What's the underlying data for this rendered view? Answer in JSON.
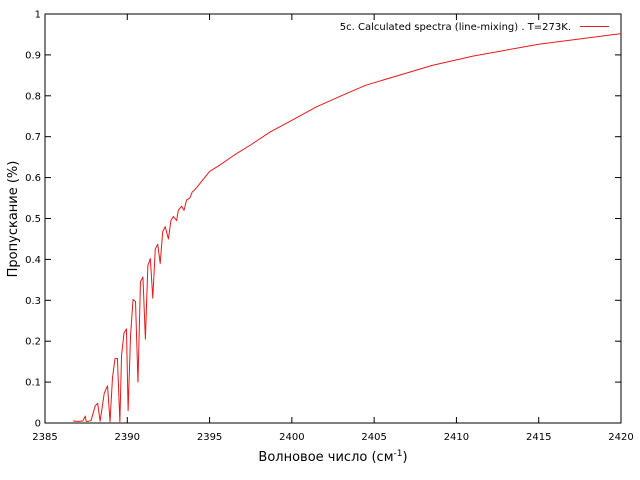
{
  "chart_data": {
    "type": "line",
    "xlabel": "Волновое число (см",
    "xlabel_superscript": "-1",
    "xlabel_suffix": ")",
    "ylabel": "Пропускание (%)",
    "xlim": [
      2385,
      2420
    ],
    "ylim": [
      0,
      1
    ],
    "x_ticks": [
      "2385",
      "2390",
      "2395",
      "2400",
      "2405",
      "2410",
      "2415",
      "2420"
    ],
    "y_ticks": [
      "0",
      "0.1",
      "0.2",
      "0.3",
      "0.4",
      "0.5",
      "0.6",
      "0.7",
      "0.8",
      "0.9",
      "1"
    ],
    "grid": false,
    "legend_position": "top-right",
    "series": [
      {
        "name": "5c. Calculated spectra (line-mixing) . T=273K.",
        "color": "#e41a1c",
        "x": [
          2386.7,
          2387.0,
          2387.3,
          2387.45,
          2387.5,
          2387.6,
          2387.8,
          2388.05,
          2388.2,
          2388.35,
          2388.6,
          2388.8,
          2388.95,
          2389.1,
          2389.25,
          2389.4,
          2389.55,
          2389.65,
          2389.8,
          2389.95,
          2390.05,
          2390.2,
          2390.35,
          2390.5,
          2390.65,
          2390.8,
          2390.95,
          2391.1,
          2391.25,
          2391.4,
          2391.55,
          2391.7,
          2391.85,
          2392.0,
          2392.15,
          2392.3,
          2392.5,
          2392.65,
          2392.8,
          2393.0,
          2393.1,
          2393.3,
          2393.45,
          2393.6,
          2393.8,
          2393.95,
          2394.1,
          2394.3,
          2394.6,
          2395.0,
          2395.6,
          2396.5,
          2397.5,
          2398.7,
          2400.0,
          2401.5,
          2403.0,
          2404.5,
          2406.5,
          2408.5,
          2411.0,
          2415.0,
          2420.0
        ],
        "values": [
          0.005,
          0.004,
          0.005,
          0.017,
          0.004,
          0.004,
          0.006,
          0.042,
          0.048,
          0.004,
          0.073,
          0.091,
          0.003,
          0.11,
          0.157,
          0.158,
          0.003,
          0.165,
          0.22,
          0.23,
          0.03,
          0.215,
          0.302,
          0.297,
          0.1,
          0.345,
          0.357,
          0.205,
          0.385,
          0.402,
          0.305,
          0.425,
          0.437,
          0.39,
          0.467,
          0.48,
          0.45,
          0.495,
          0.505,
          0.495,
          0.52,
          0.53,
          0.52,
          0.545,
          0.55,
          0.565,
          0.57,
          0.58,
          0.595,
          0.615,
          0.63,
          0.655,
          0.68,
          0.712,
          0.74,
          0.773,
          0.8,
          0.826,
          0.85,
          0.874,
          0.897,
          0.926,
          0.952
        ]
      }
    ]
  }
}
